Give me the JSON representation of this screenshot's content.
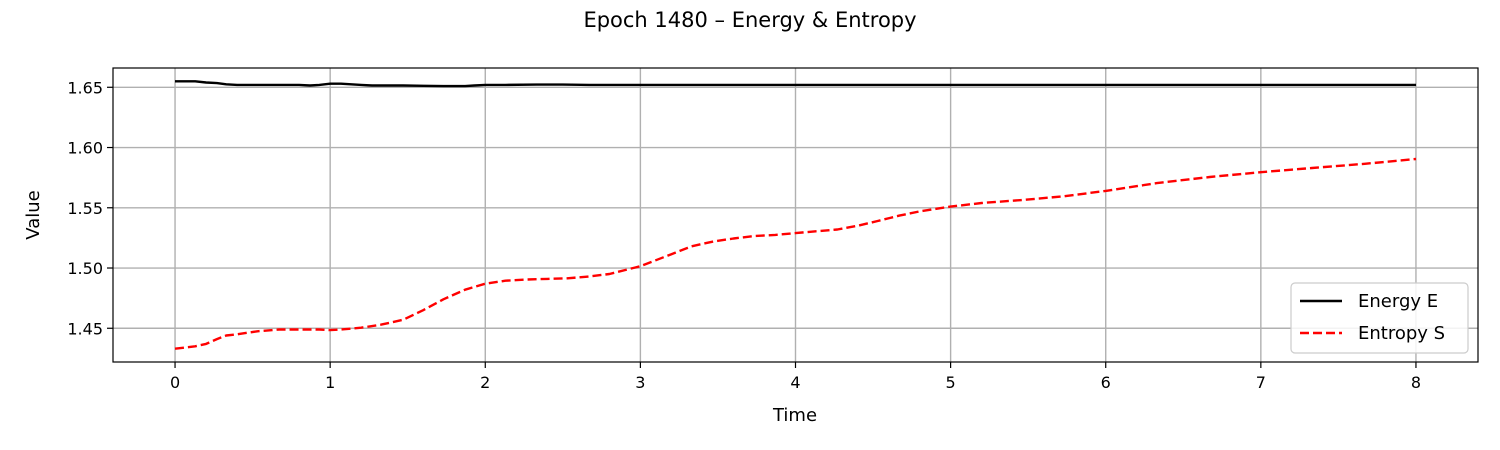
{
  "chart_data": {
    "type": "line",
    "title": "Epoch 1480 – Energy & Entropy",
    "xlabel": "Time",
    "ylabel": "Value",
    "xlim": [
      -0.4,
      8.4
    ],
    "ylim": [
      1.422,
      1.666
    ],
    "xticks": [
      0,
      1,
      2,
      3,
      4,
      5,
      6,
      7,
      8
    ],
    "xtick_labels": [
      "0",
      "1",
      "2",
      "3",
      "4",
      "5",
      "6",
      "7",
      "8"
    ],
    "yticks": [
      1.45,
      1.5,
      1.55,
      1.6,
      1.65
    ],
    "ytick_labels": [
      "1.45",
      "1.50",
      "1.55",
      "1.60",
      "1.65"
    ],
    "grid": true,
    "legend_position": "lower-right",
    "series": [
      {
        "name": "Energy E",
        "color": "#000000",
        "style": "solid",
        "x": [
          0,
          0.13,
          0.2,
          0.27,
          0.33,
          0.4,
          0.53,
          0.67,
          0.8,
          0.87,
          0.93,
          1.0,
          1.07,
          1.2,
          1.27,
          1.33,
          1.47,
          1.6,
          1.73,
          1.87,
          1.93,
          2.0,
          2.13,
          2.33,
          2.5,
          2.67,
          3.0,
          3.5,
          4.0,
          5.0,
          6.0,
          7.0,
          8.0
        ],
        "y": [
          1.655,
          1.655,
          1.654,
          1.6535,
          1.6525,
          1.652,
          1.652,
          1.652,
          1.652,
          1.6515,
          1.652,
          1.653,
          1.653,
          1.652,
          1.6515,
          1.6515,
          1.6515,
          1.6512,
          1.651,
          1.651,
          1.6515,
          1.652,
          1.652,
          1.6522,
          1.6522,
          1.652,
          1.652,
          1.652,
          1.652,
          1.652,
          1.652,
          1.652,
          1.652
        ]
      },
      {
        "name": "Entropy S",
        "color": "#ff0000",
        "style": "dashed",
        "x": [
          0,
          0.13,
          0.2,
          0.27,
          0.33,
          0.4,
          0.53,
          0.67,
          0.8,
          0.93,
          1.0,
          1.07,
          1.2,
          1.33,
          1.47,
          1.6,
          1.73,
          1.87,
          2.0,
          2.13,
          2.27,
          2.4,
          2.53,
          2.67,
          2.8,
          3.0,
          3.2,
          3.33,
          3.47,
          3.6,
          3.73,
          3.87,
          4.0,
          4.13,
          4.27,
          4.4,
          4.53,
          4.67,
          4.8,
          5.0,
          5.2,
          5.47,
          5.73,
          6.0,
          6.33,
          6.67,
          7.0,
          7.33,
          7.67,
          8.0
        ],
        "y": [
          1.433,
          1.435,
          1.437,
          1.441,
          1.444,
          1.445,
          1.4475,
          1.449,
          1.449,
          1.449,
          1.4485,
          1.449,
          1.4505,
          1.453,
          1.457,
          1.465,
          1.474,
          1.482,
          1.487,
          1.4895,
          1.4905,
          1.491,
          1.4915,
          1.493,
          1.495,
          1.5015,
          1.5115,
          1.518,
          1.522,
          1.5245,
          1.5265,
          1.5275,
          1.529,
          1.5305,
          1.532,
          1.535,
          1.539,
          1.5435,
          1.547,
          1.551,
          1.554,
          1.5565,
          1.5595,
          1.564,
          1.5705,
          1.5755,
          1.5795,
          1.583,
          1.5865,
          1.5905
        ]
      }
    ]
  }
}
